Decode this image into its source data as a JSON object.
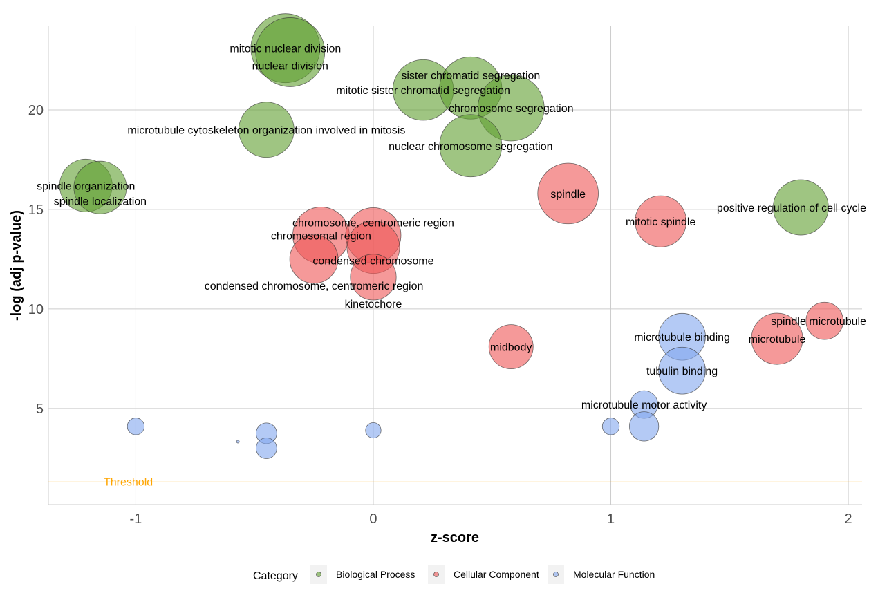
{
  "chart_data": {
    "type": "scatter",
    "subtype": "bubble",
    "xlabel": "z-score",
    "ylabel": "-log (adj p-value)",
    "xlim": [
      -1.368,
      2.058
    ],
    "ylim": [
      0.17,
      24.2
    ],
    "x_ticks": [
      -1,
      0,
      1,
      2
    ],
    "y_ticks": [
      5,
      10,
      15,
      20
    ],
    "grid": true,
    "legend": {
      "title": "Category",
      "placement": "bottom",
      "entries": [
        "Biological Process",
        "Cellular Component",
        "Molecular Function"
      ]
    },
    "colors": {
      "Biological Process": "#5f9e2f",
      "Cellular Component": "#ee5555",
      "Molecular Function": "#82a7ee"
    },
    "threshold": {
      "label": "Threshold",
      "y": 1.3,
      "color": "#ffa500"
    },
    "points": [
      {
        "label": "mitotic nuclear division",
        "category": "Biological Process",
        "x": -0.37,
        "y": 23.1,
        "size": 100
      },
      {
        "label": "nuclear division",
        "category": "Biological Process",
        "x": -0.35,
        "y": 22.9,
        "size": 100
      },
      {
        "label": "mitotic sister chromatid segregation",
        "category": "Biological Process",
        "x": 0.21,
        "y": 21.0,
        "size": 77
      },
      {
        "label": "sister chromatid segregation",
        "category": "Biological Process",
        "x": 0.41,
        "y": 21.1,
        "size": 81
      },
      {
        "label": "chromosome segregation",
        "category": "Biological Process",
        "x": 0.58,
        "y": 20.1,
        "size": 92
      },
      {
        "label": "nuclear chromosome segregation",
        "category": "Biological Process",
        "x": 0.41,
        "y": 18.2,
        "size": 81
      },
      {
        "label": "microtubule cytoskeleton organization involved in mitosis",
        "category": "Biological Process",
        "x": -0.45,
        "y": 19.0,
        "size": 64
      },
      {
        "label": "spindle organization",
        "category": "Biological Process",
        "x": -1.21,
        "y": 16.2,
        "size": 58
      },
      {
        "label": "spindle localization",
        "category": "Biological Process",
        "x": -1.15,
        "y": 16.1,
        "size": 58
      },
      {
        "label": "positive regulation of cell cycle",
        "category": "Biological Process",
        "x": 1.8,
        "y": 15.1,
        "size": 64
      },
      {
        "label": "spindle",
        "category": "Cellular Component",
        "x": 0.82,
        "y": 15.8,
        "size": 77
      },
      {
        "label": "mitotic spindle",
        "category": "Cellular Component",
        "x": 1.21,
        "y": 14.4,
        "size": 55
      },
      {
        "label": "chromosomal region",
        "category": "Cellular Component",
        "x": -0.22,
        "y": 13.7,
        "size": 67
      },
      {
        "label": "chromosome, centromeric region",
        "category": "Cellular Component",
        "x": 0.0,
        "y": 13.7,
        "size": 64
      },
      {
        "label": "condensed chromosome",
        "category": "Cellular Component",
        "x": 0.0,
        "y": 13.1,
        "size": 58
      },
      {
        "label": "condensed chromosome, centromeric region",
        "category": "Cellular Component",
        "x": -0.25,
        "y": 12.5,
        "size": 49
      },
      {
        "label": "kinetochore",
        "category": "Cellular Component",
        "x": 0.0,
        "y": 11.6,
        "size": 44
      },
      {
        "label": "midbody",
        "category": "Cellular Component",
        "x": 0.58,
        "y": 8.1,
        "size": 41
      },
      {
        "label": "microtubule",
        "category": "Cellular Component",
        "x": 1.7,
        "y": 8.5,
        "size": 55
      },
      {
        "label": "spindle microtubule",
        "category": "Cellular Component",
        "x": 1.9,
        "y": 9.4,
        "size": 29
      },
      {
        "label": "microtubule binding",
        "category": "Molecular Function",
        "x": 1.3,
        "y": 8.6,
        "size": 46
      },
      {
        "label": "tubulin binding",
        "category": "Molecular Function",
        "x": 1.3,
        "y": 6.9,
        "size": 46
      },
      {
        "label": "microtubule motor activity",
        "category": "Molecular Function",
        "x": 1.14,
        "y": 5.2,
        "size": 16
      },
      {
        "label": "",
        "category": "Molecular Function",
        "x": 1.14,
        "y": 4.1,
        "size": 18
      },
      {
        "label": "",
        "category": "Molecular Function",
        "x": 1.0,
        "y": 4.1,
        "size": 6
      },
      {
        "label": "",
        "category": "Molecular Function",
        "x": -1.0,
        "y": 4.1,
        "size": 6
      },
      {
        "label": "",
        "category": "Molecular Function",
        "x": -0.45,
        "y": 3.75,
        "size": 9
      },
      {
        "label": "",
        "category": "Molecular Function",
        "x": -0.45,
        "y": 3.0,
        "size": 9
      },
      {
        "label": "",
        "category": "Molecular Function",
        "x": -0.57,
        "y": 3.33,
        "size": 0.16
      },
      {
        "label": "",
        "category": "Molecular Function",
        "x": 0.0,
        "y": 3.9,
        "size": 5
      }
    ]
  }
}
